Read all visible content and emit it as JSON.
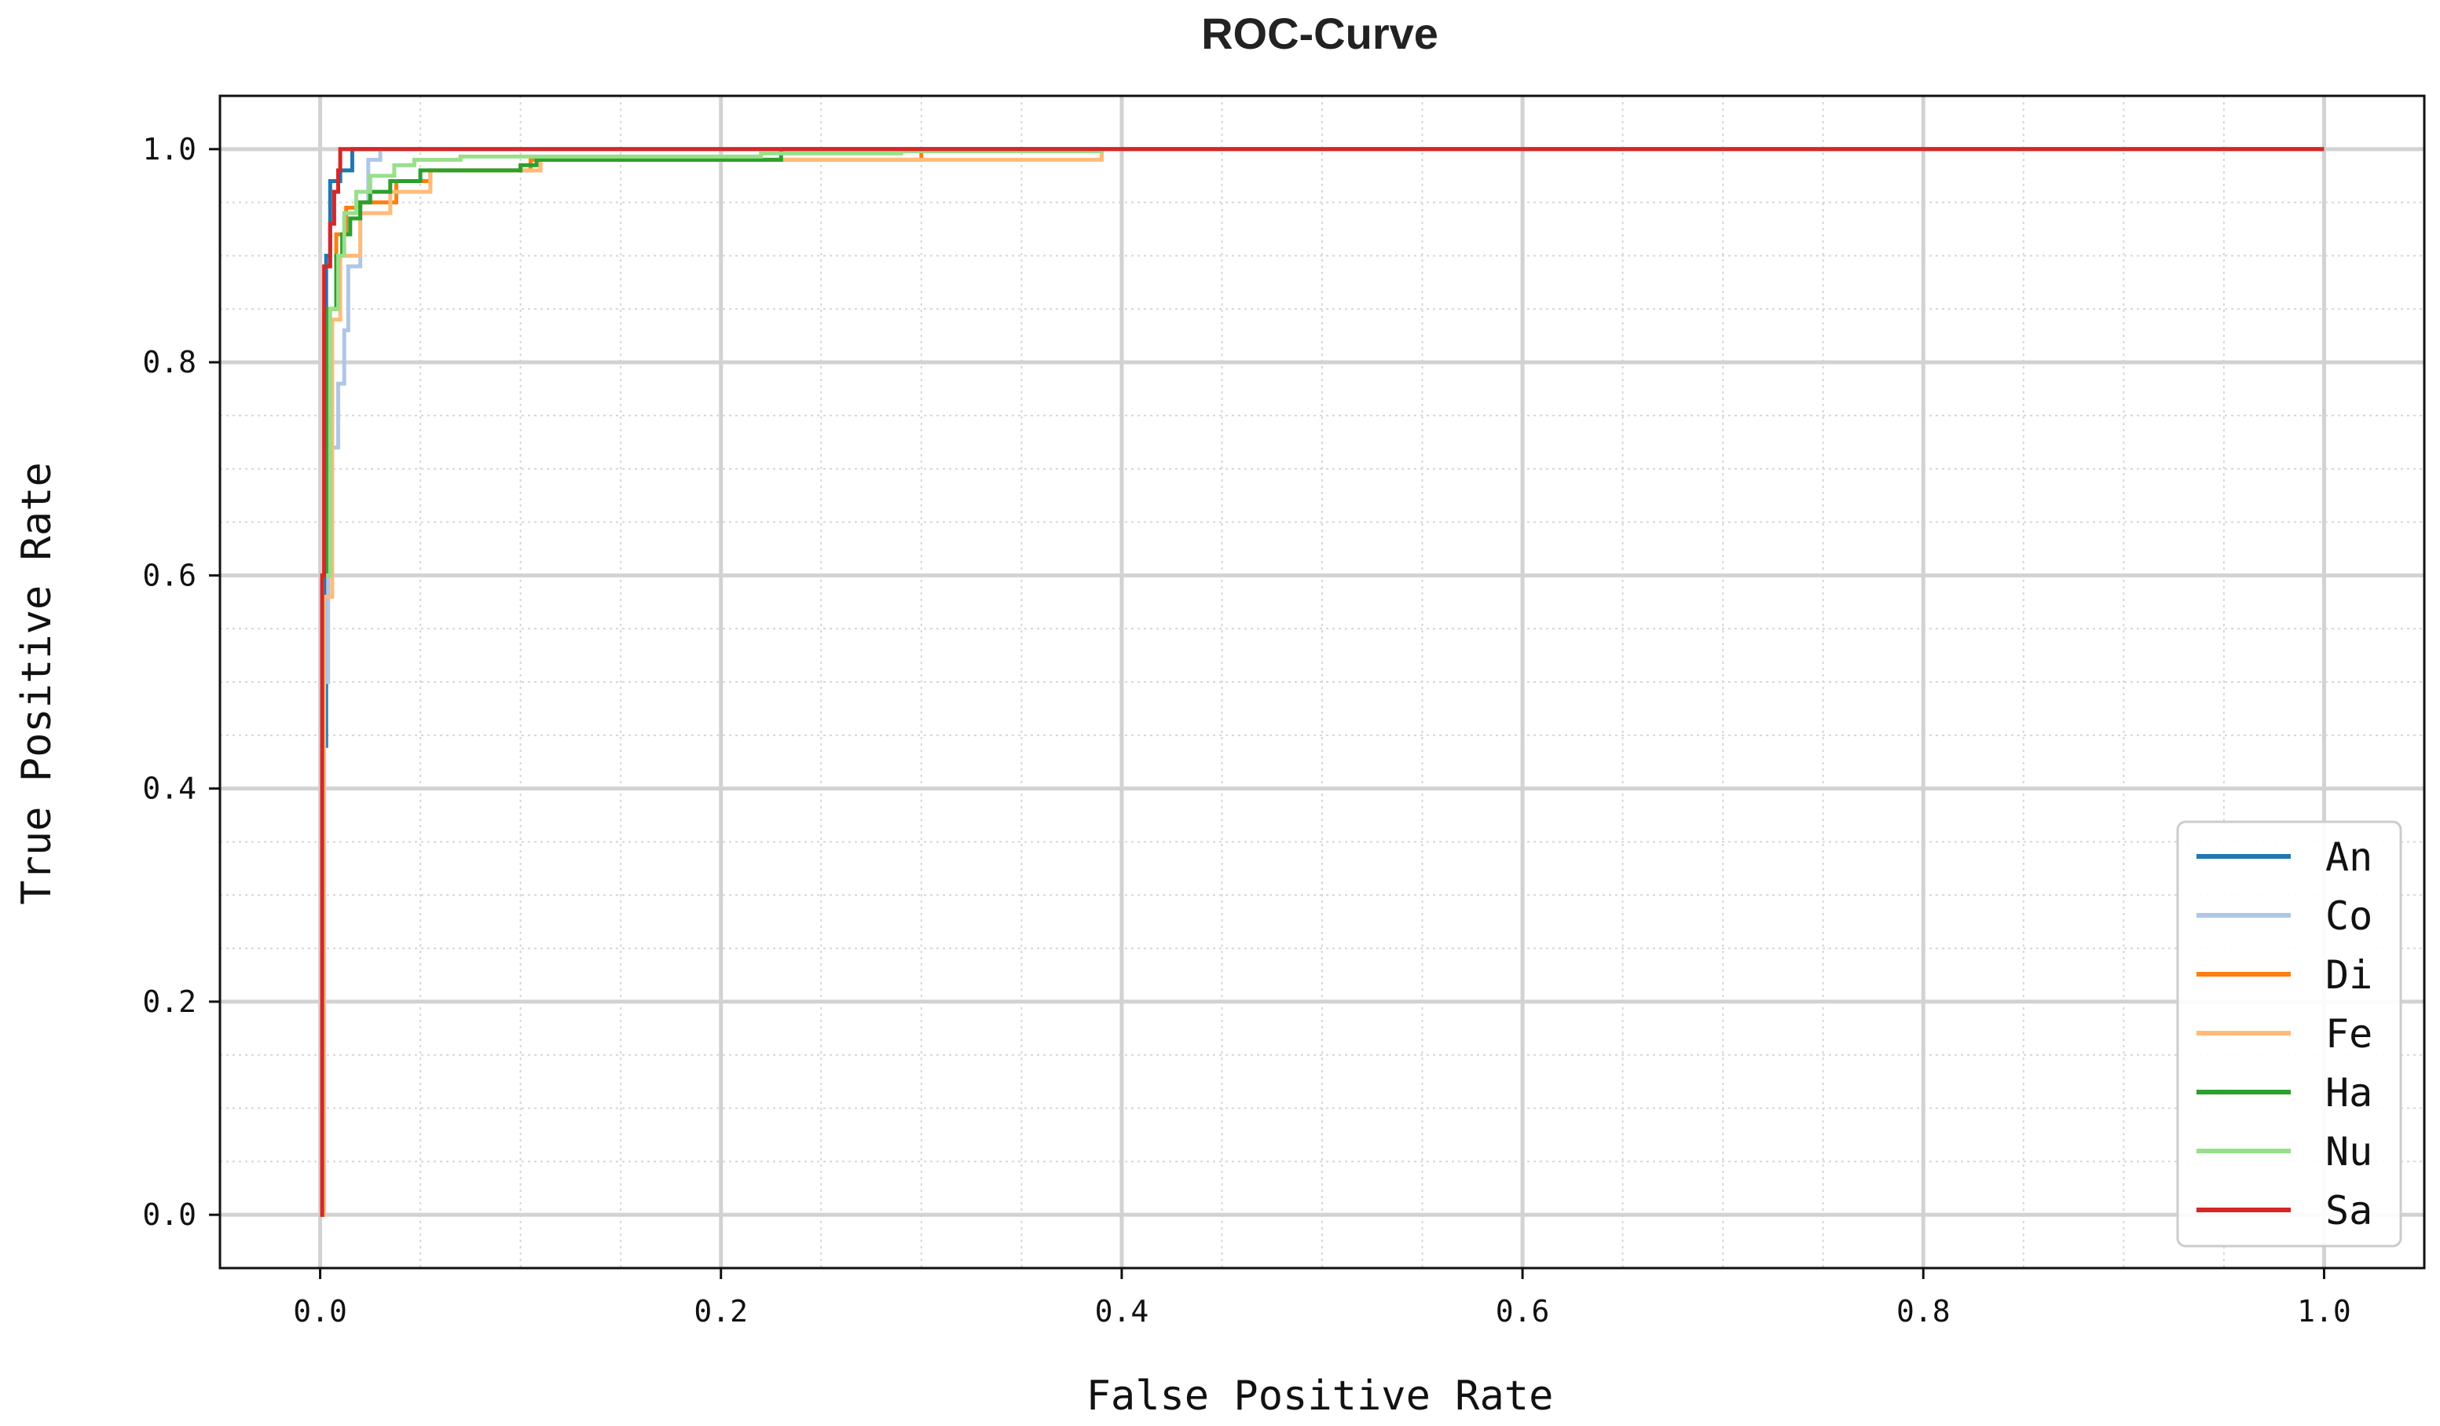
{
  "chart_data": {
    "type": "line",
    "title": "ROC-Curve",
    "xlabel": "False Positive Rate",
    "ylabel": "True Positive Rate",
    "xlim": [
      -0.05,
      1.05
    ],
    "ylim": [
      -0.05,
      1.05
    ],
    "x_ticks": [
      0.0,
      0.2,
      0.4,
      0.6,
      0.8,
      1.0
    ],
    "x_tick_labels": [
      "0.0",
      "0.2",
      "0.4",
      "0.6",
      "0.8",
      "1.0"
    ],
    "y_ticks": [
      0.0,
      0.2,
      0.4,
      0.6,
      0.8,
      1.0
    ],
    "y_tick_labels": [
      "0.0",
      "0.2",
      "0.4",
      "0.6",
      "0.8",
      "1.0"
    ],
    "grid": true,
    "minor_grid": true,
    "legend_position": "lower-right",
    "series": [
      {
        "name": "An",
        "color": "#1f77b4",
        "x": [
          0,
          0.001,
          0.001,
          0.003,
          0.003,
          0.005,
          0.005,
          0.01,
          0.01,
          0.016,
          0.016,
          1.0
        ],
        "y": [
          0,
          0,
          0.44,
          0.44,
          0.9,
          0.9,
          0.97,
          0.97,
          0.98,
          0.98,
          1.0,
          1.0
        ]
      },
      {
        "name": "Co",
        "color": "#aec7e8",
        "x": [
          0,
          0.002,
          0.002,
          0.004,
          0.004,
          0.009,
          0.009,
          0.012,
          0.012,
          0.014,
          0.014,
          0.02,
          0.02,
          0.024,
          0.024,
          0.03,
          0.03,
          1.0
        ],
        "y": [
          0,
          0,
          0.5,
          0.5,
          0.72,
          0.72,
          0.78,
          0.78,
          0.83,
          0.83,
          0.89,
          0.89,
          0.95,
          0.95,
          0.99,
          0.99,
          1.0,
          1.0
        ]
      },
      {
        "name": "Di",
        "color": "#ff7f0e",
        "x": [
          0,
          0.001,
          0.001,
          0.004,
          0.004,
          0.008,
          0.008,
          0.013,
          0.013,
          0.02,
          0.02,
          0.038,
          0.038,
          0.055,
          0.055,
          0.105,
          0.105,
          0.3,
          0.3,
          1.0
        ],
        "y": [
          0,
          0,
          0.6,
          0.6,
          0.85,
          0.85,
          0.92,
          0.92,
          0.945,
          0.945,
          0.95,
          0.95,
          0.97,
          0.97,
          0.98,
          0.98,
          0.99,
          0.99,
          1.0,
          1.0
        ]
      },
      {
        "name": "Fe",
        "color": "#ffbb78",
        "x": [
          0,
          0.002,
          0.002,
          0.006,
          0.006,
          0.01,
          0.01,
          0.02,
          0.02,
          0.035,
          0.035,
          0.055,
          0.055,
          0.11,
          0.11,
          0.39,
          0.39,
          1.0
        ],
        "y": [
          0,
          0,
          0.58,
          0.58,
          0.84,
          0.84,
          0.9,
          0.9,
          0.94,
          0.94,
          0.96,
          0.96,
          0.98,
          0.98,
          0.99,
          0.99,
          1.0,
          1.0
        ]
      },
      {
        "name": "Ha",
        "color": "#2ca02c",
        "x": [
          0,
          0.001,
          0.001,
          0.004,
          0.004,
          0.008,
          0.008,
          0.011,
          0.011,
          0.015,
          0.015,
          0.02,
          0.02,
          0.025,
          0.025,
          0.035,
          0.035,
          0.05,
          0.05,
          0.1,
          0.1,
          0.108,
          0.108,
          0.23,
          0.23,
          1.0
        ],
        "y": [
          0,
          0,
          0.6,
          0.6,
          0.85,
          0.85,
          0.9,
          0.9,
          0.92,
          0.92,
          0.935,
          0.935,
          0.95,
          0.95,
          0.96,
          0.96,
          0.97,
          0.97,
          0.98,
          0.98,
          0.985,
          0.985,
          0.99,
          0.99,
          1.0,
          1.0
        ]
      },
      {
        "name": "Nu",
        "color": "#98df8a",
        "x": [
          0,
          0.001,
          0.001,
          0.005,
          0.005,
          0.009,
          0.009,
          0.012,
          0.012,
          0.018,
          0.018,
          0.025,
          0.025,
          0.037,
          0.037,
          0.047,
          0.047,
          0.07,
          0.07,
          0.22,
          0.22,
          0.29,
          0.29,
          0.39,
          0.39,
          1.0
        ],
        "y": [
          0,
          0,
          0.6,
          0.6,
          0.85,
          0.85,
          0.9,
          0.9,
          0.94,
          0.94,
          0.96,
          0.96,
          0.975,
          0.975,
          0.985,
          0.985,
          0.99,
          0.99,
          0.993,
          0.993,
          0.996,
          0.996,
          0.998,
          0.998,
          1.0,
          1.0
        ]
      },
      {
        "name": "Sa",
        "color": "#d62728",
        "x": [
          0,
          0.001,
          0.001,
          0.002,
          0.002,
          0.005,
          0.005,
          0.007,
          0.007,
          0.009,
          0.009,
          0.01,
          0.01,
          1.0
        ],
        "y": [
          0,
          0,
          0.6,
          0.6,
          0.89,
          0.89,
          0.93,
          0.93,
          0.96,
          0.96,
          0.98,
          0.98,
          1.0,
          1.0
        ]
      }
    ]
  }
}
